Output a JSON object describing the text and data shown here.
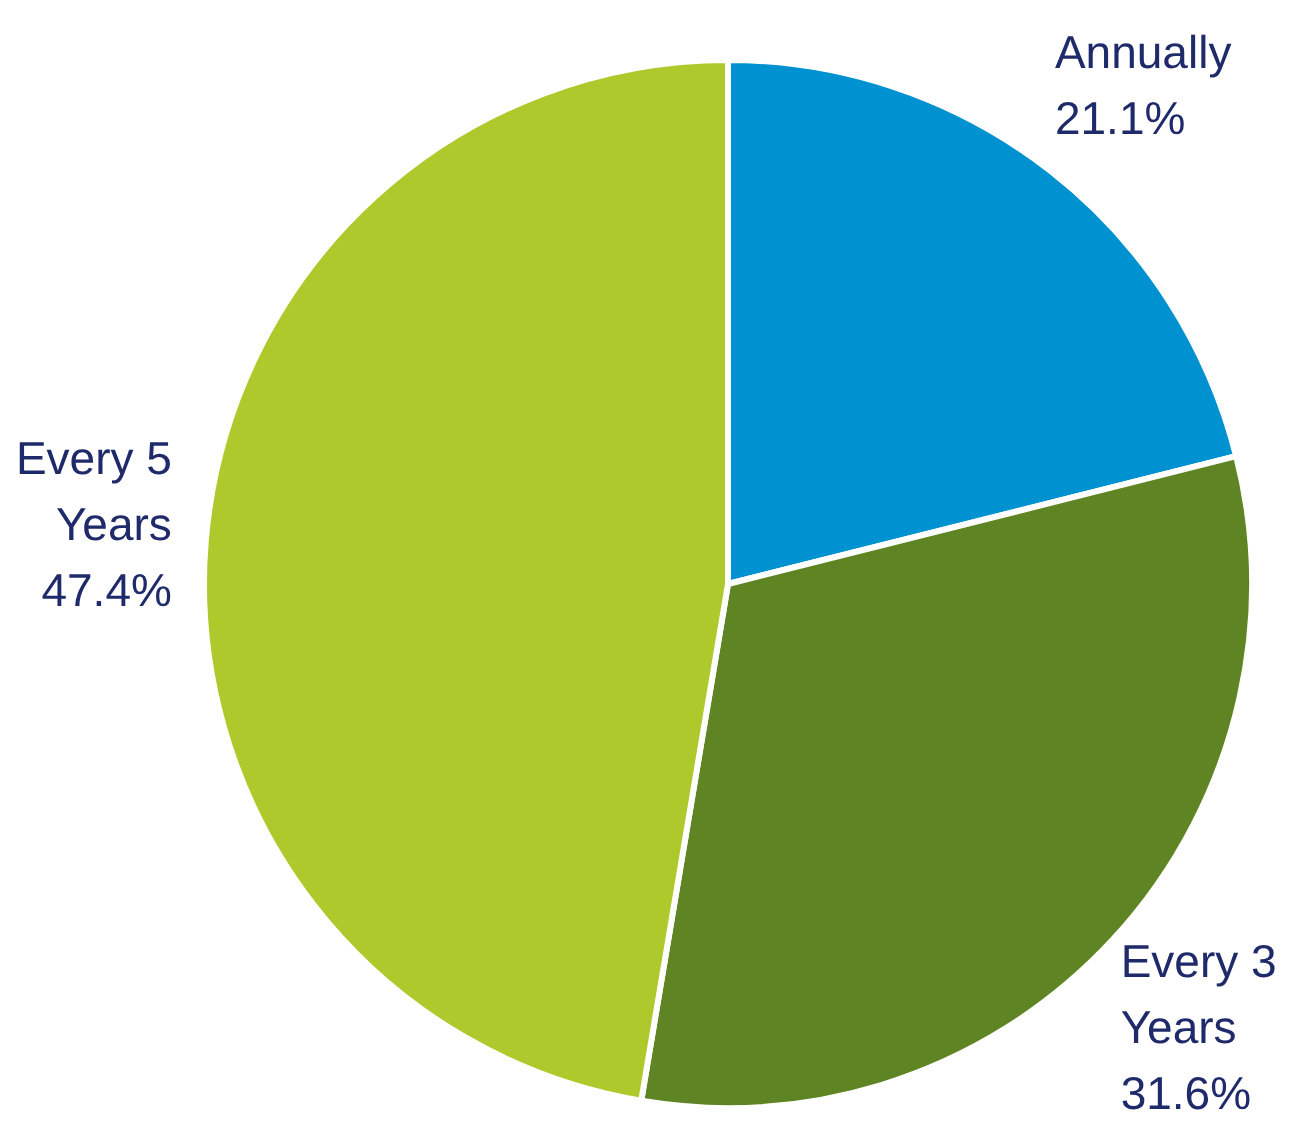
{
  "chart_data": {
    "type": "pie",
    "categories": [
      "Annually",
      "Every 3 Years",
      "Every 5 Years"
    ],
    "values": [
      21.1,
      31.6,
      47.4
    ],
    "value_labels": [
      "21.1%",
      "31.6%",
      "47.4%"
    ],
    "colors": [
      "#0092d0",
      "#5f8423",
      "#adc92b"
    ],
    "legend": false
  }
}
